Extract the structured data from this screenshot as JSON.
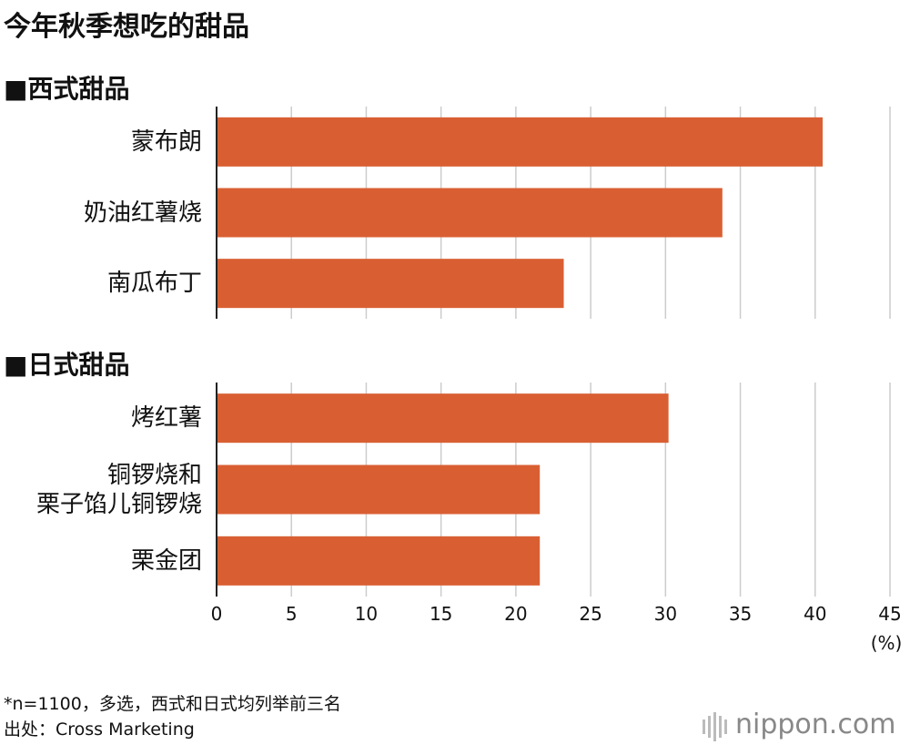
{
  "title": "今年秋季想吃的甜品",
  "chart_data": [
    {
      "type": "hbar",
      "title": "■西式甜品",
      "categories": [
        "蒙布朗",
        "奶油红薯烧",
        "南瓜布丁"
      ],
      "values": [
        40.5,
        33.8,
        23.2
      ],
      "color": "#d95f33",
      "xlim": [
        0,
        45
      ],
      "xticks": [
        0,
        5,
        10,
        15,
        20,
        25,
        30,
        35,
        40,
        45
      ],
      "grid": true
    },
    {
      "type": "hbar",
      "title": "■日式甜品",
      "categories": [
        "烤红薯",
        "铜锣烧和\n栗子馅儿铜锣烧",
        "栗金团"
      ],
      "values": [
        30.2,
        21.6,
        21.6
      ],
      "color": "#d95f33",
      "xlim": [
        0,
        45
      ],
      "xticks": [
        0,
        5,
        10,
        15,
        20,
        25,
        30,
        35,
        40,
        45
      ],
      "grid": true,
      "xlabel": "(%)"
    }
  ],
  "footnote": "*n=1100，多选，西式和日式均列举前三名",
  "source": "出处：Cross Marketing",
  "logo": "nippon.com"
}
